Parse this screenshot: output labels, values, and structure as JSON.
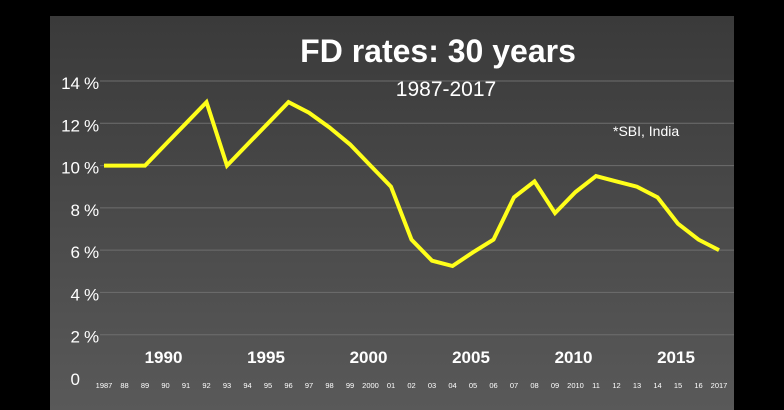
{
  "chart_data": {
    "type": "line",
    "title": "FD rates: 30 years",
    "subtitle": "1987-2017",
    "annotation": "*SBI, India",
    "xlabel": "",
    "ylabel": "",
    "ylim": [
      0,
      14
    ],
    "y_ticks": [
      {
        "value": 0,
        "label": "0"
      },
      {
        "value": 2,
        "label": "2 %"
      },
      {
        "value": 4,
        "label": "4 %"
      },
      {
        "value": 6,
        "label": "6 %"
      },
      {
        "value": 8,
        "label": "8 %"
      },
      {
        "value": 10,
        "label": "10 %"
      },
      {
        "value": 12,
        "label": "12 %"
      },
      {
        "value": 14,
        "label": "14 %"
      }
    ],
    "x_tick_labels": [
      "1987",
      "88",
      "89",
      "90",
      "91",
      "92",
      "93",
      "94",
      "95",
      "96",
      "97",
      "98",
      "99",
      "2000",
      "01",
      "02",
      "03",
      "04",
      "05",
      "06",
      "07",
      "08",
      "09",
      "2010",
      "11",
      "12",
      "13",
      "14",
      "15",
      "16",
      "2017"
    ],
    "x_major_labels": [
      {
        "year": 1990,
        "label": "1990"
      },
      {
        "year": 1995,
        "label": "1995"
      },
      {
        "year": 2000,
        "label": "2000"
      },
      {
        "year": 2005,
        "label": "2005"
      },
      {
        "year": 2010,
        "label": "2010"
      },
      {
        "year": 2015,
        "label": "2015"
      }
    ],
    "grid": true,
    "colors": {
      "line": "#ffff1a",
      "background_top": "#3a3a3a",
      "background_bottom": "#595959",
      "text": "#ffffff",
      "grid": "#6e6e6e"
    },
    "series": [
      {
        "x": [
          1987,
          1988,
          1989,
          1990,
          1991,
          1992,
          1993,
          1994,
          1995,
          1996,
          1997,
          1998,
          1999,
          2000,
          2001,
          2002,
          2003,
          2004,
          2005,
          2006,
          2007,
          2008,
          2009,
          2010,
          2011,
          2012,
          2013,
          2014,
          2015,
          2016,
          2017
        ],
        "values": [
          10,
          10,
          10,
          11,
          12,
          13,
          10,
          11,
          12,
          13,
          12.5,
          11.8,
          11,
          10,
          9,
          6.5,
          5.5,
          5.25,
          5.9,
          6.5,
          8.5,
          9.25,
          7.75,
          8.75,
          9.5,
          9.25,
          9,
          8.5,
          7.25,
          6.5,
          6
        ]
      }
    ]
  }
}
